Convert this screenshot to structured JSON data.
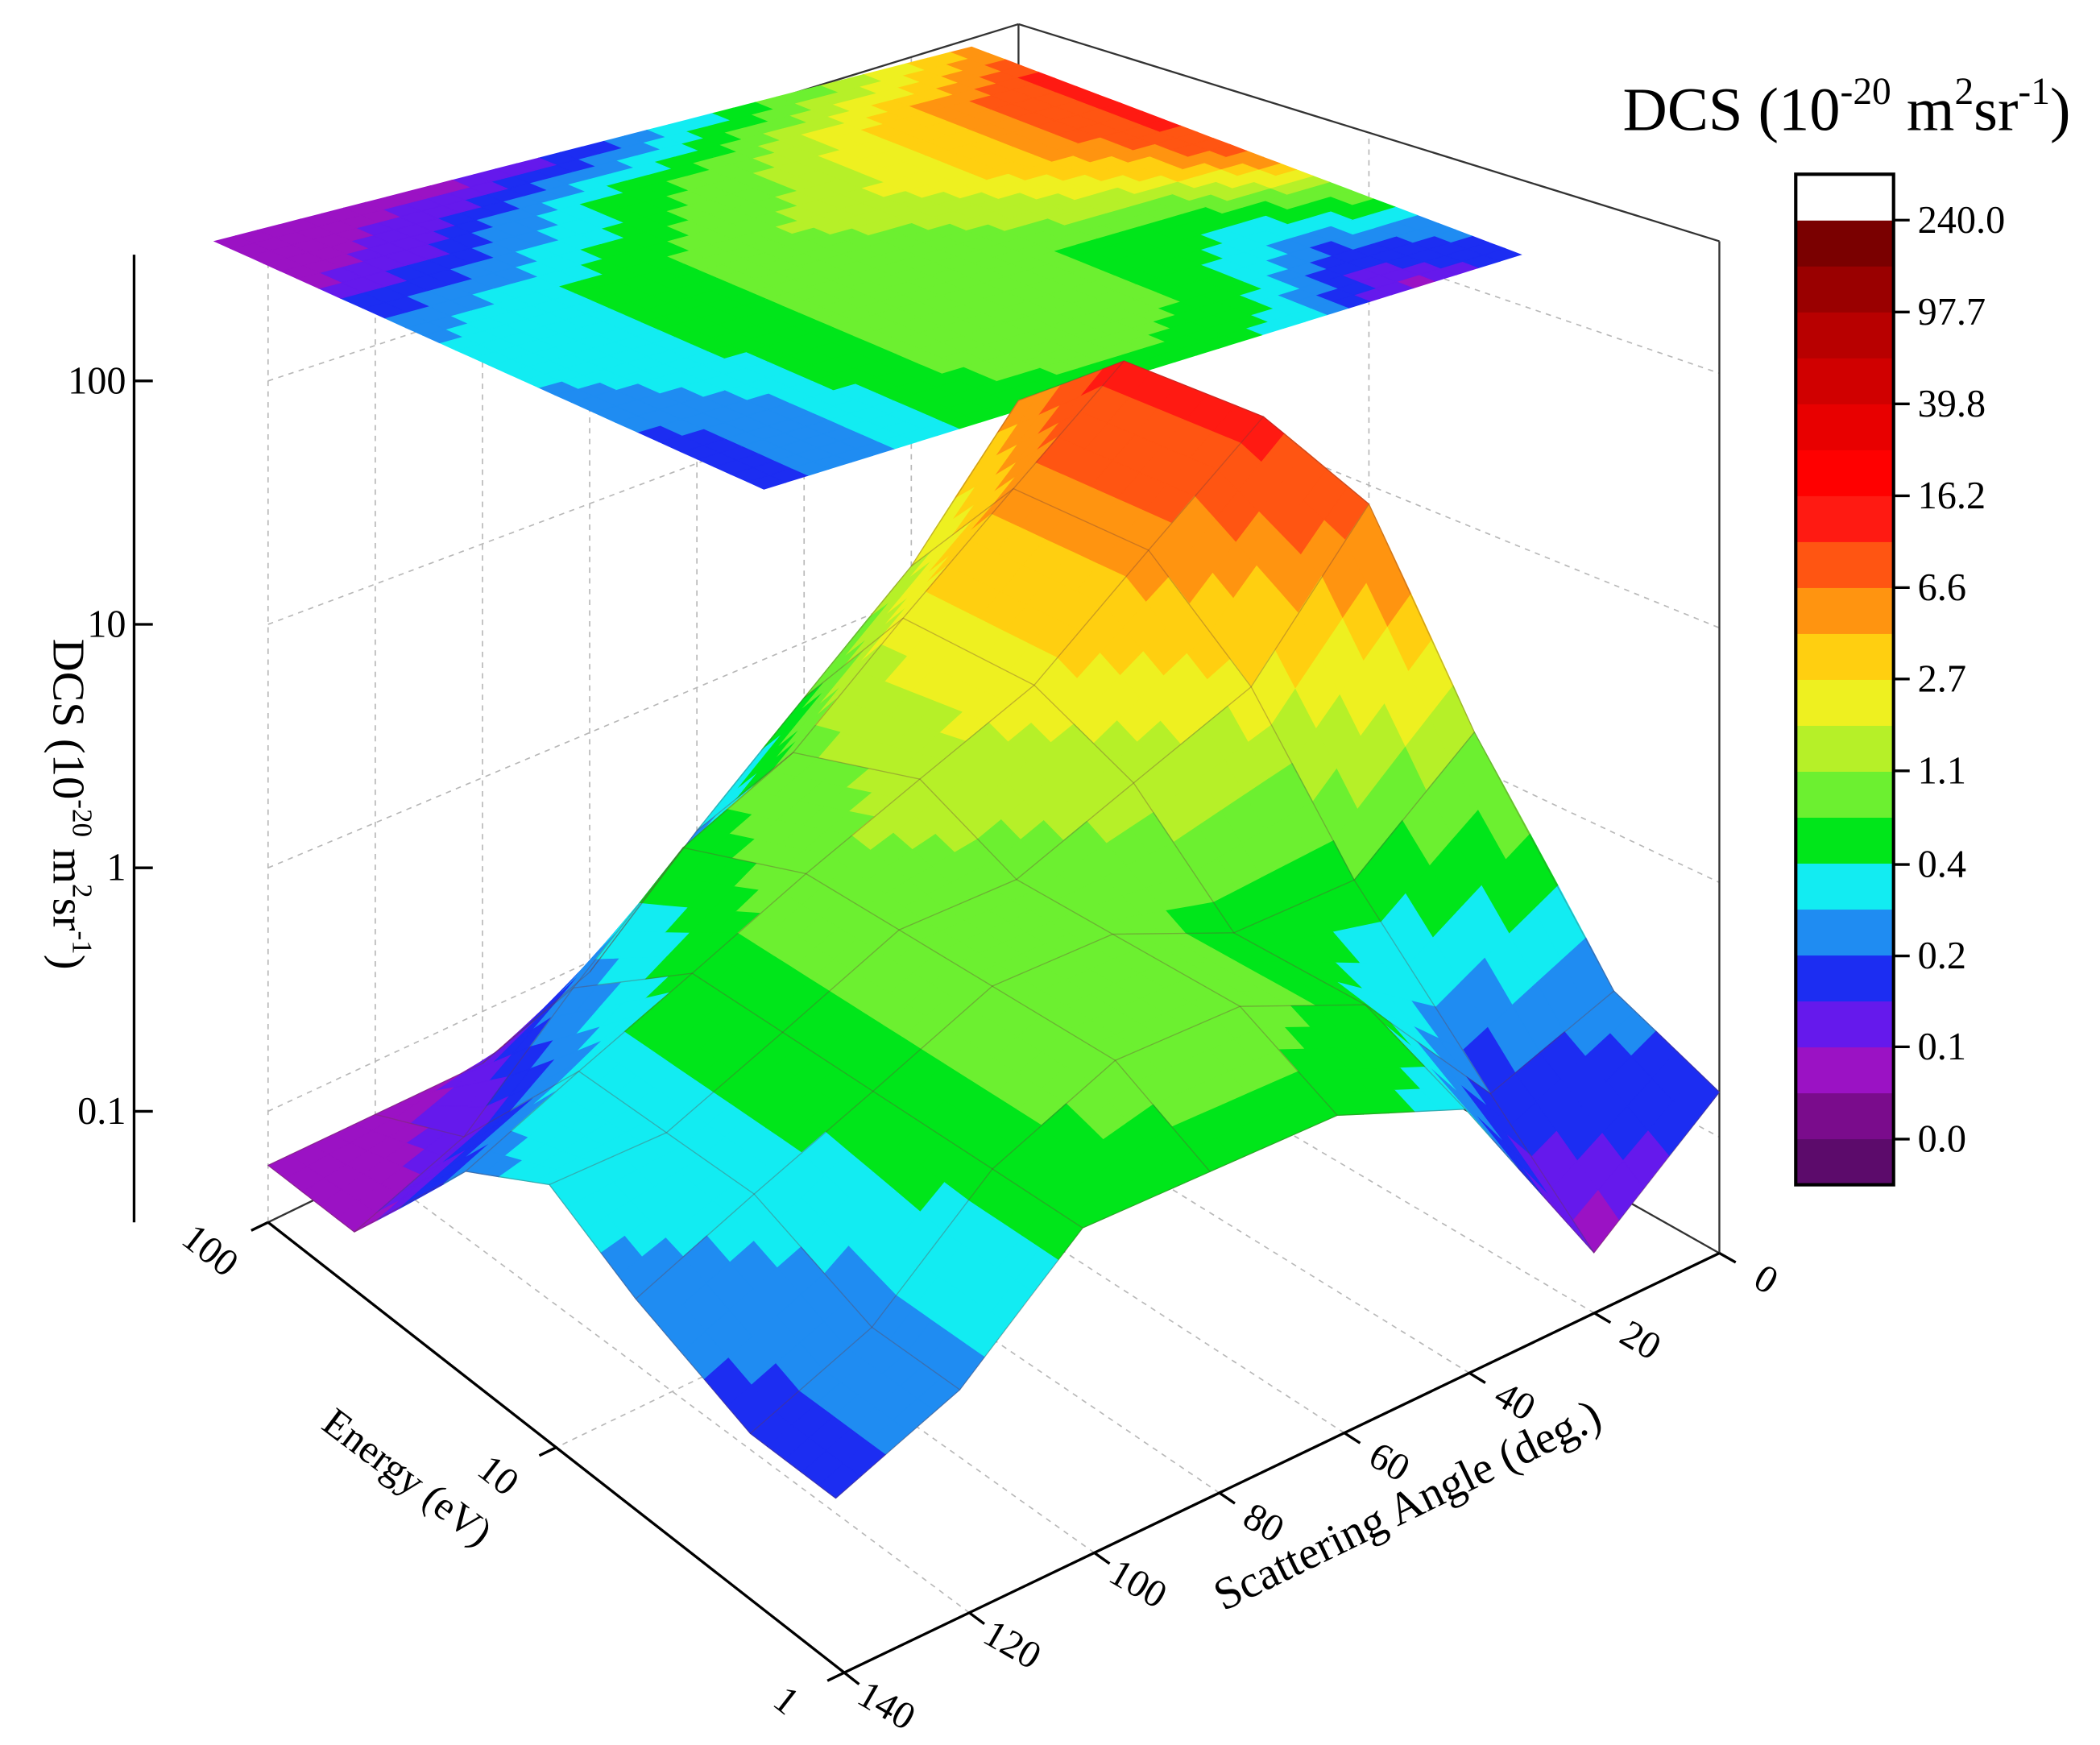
{
  "chart_data": {
    "type": "surface3d",
    "x_label": "Energy (eV)",
    "y_label": "Scattering Angle (deg.)",
    "z_label": [
      "DCS (10",
      "-20",
      " m",
      "2",
      "sr",
      "-1",
      ")"
    ],
    "energy": [
      1,
      2,
      5,
      10,
      20,
      50,
      100
    ],
    "angle": [
      0,
      20,
      40,
      60,
      80,
      100,
      120,
      140
    ],
    "values": [
      [
        0.15,
        0.06,
        0.36,
        0.56,
        0.56,
        0.56,
        0.23,
        0.15
      ],
      [
        0.23,
        0.15,
        0.56,
        0.9,
        0.9,
        0.56,
        0.23,
        0.15
      ],
      [
        1.4,
        0.56,
        0.56,
        0.9,
        0.9,
        0.56,
        0.36,
        0.23
      ],
      [
        8.3,
        2.2,
        1.4,
        0.9,
        0.9,
        0.56,
        0.36,
        0.36
      ],
      [
        13,
        5.3,
        2.2,
        1.4,
        0.9,
        0.56,
        0.36,
        0.23
      ],
      [
        13,
        5.3,
        2.2,
        0.9,
        0.56,
        0.23,
        0.09,
        0.06
      ],
      [
        5.3,
        1.4,
        0.56,
        0.23,
        0.09,
        0.06,
        0.06,
        0.06
      ]
    ],
    "xlim": [
      1,
      100
    ],
    "xticks": [
      1,
      10,
      100
    ],
    "x_log": true,
    "ylim": [
      0,
      140
    ],
    "yticks": [
      0,
      20,
      40,
      60,
      80,
      100,
      120,
      140
    ],
    "zlim": [
      0.035,
      330
    ],
    "zticks": [
      0.1,
      1,
      10,
      100
    ],
    "z_log": true,
    "grid": true,
    "colorbar": {
      "title": [
        "DCS (10",
        "-20",
        " m",
        "2",
        "sr",
        "-1",
        ")"
      ],
      "log": true,
      "lim": [
        0.0192,
        376
      ],
      "colors": [
        "#5c0b6b",
        "#7a0c8c",
        "#9b12c4",
        "#6519ec",
        "#1c2df2",
        "#1f8cf2",
        "#12ecf2",
        "#00e61a",
        "#6cf030",
        "#b6f028",
        "#eef020",
        "#ffcf10",
        "#ff9410",
        "#ff5512",
        "#ff1a12",
        "#ff0000",
        "#e80000",
        "#d00000",
        "#b80000",
        "#9a0000",
        "#7a0000",
        "#ffffff"
      ],
      "ticks": [
        {
          "value": 240,
          "label": "240.0"
        },
        {
          "value": 97.7,
          "label": "97.7"
        },
        {
          "value": 39.8,
          "label": "39.8"
        },
        {
          "value": 16.2,
          "label": "16.2"
        },
        {
          "value": 6.6,
          "label": "6.6"
        },
        {
          "value": 2.7,
          "label": "2.7"
        },
        {
          "value": 1.1,
          "label": "1.1"
        },
        {
          "value": 0.44,
          "label": "0.4"
        },
        {
          "value": 0.18,
          "label": "0.2"
        },
        {
          "value": 0.074,
          "label": "0.1"
        },
        {
          "value": 0.03,
          "label": "0.0"
        }
      ]
    }
  }
}
